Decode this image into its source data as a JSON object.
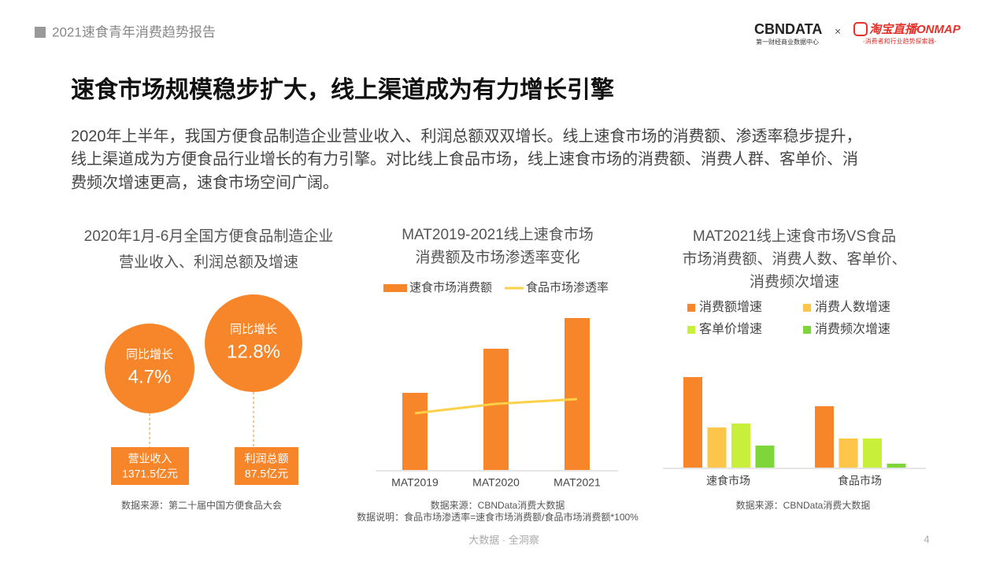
{
  "header": {
    "report_title": "2021速食青年消费趋势报告",
    "logo1": "CBNDATA",
    "logo1_sub": "第一财经商业数据中心",
    "logo_x": "×",
    "logo2": "淘宝直播ONMAP",
    "logo2_sub": "-消费者和行业趋势探索器-"
  },
  "title": "速食市场规模稳步扩大，线上渠道成为有力增长引擎",
  "body_lines": [
    "2020年上半年，我国方便食品制造企业营业收入、利润总额双双增长。线上速食市场的消费额、渗透率稳步提升，",
    "线上渠道成为方便食品行业增长的有力引擎。对比线上食品市场，线上速食市场的消费额、消费人群、客单价、消",
    "费频次增速更高，速食市场空间广阔。"
  ],
  "chart_data": [
    {
      "type": "circle",
      "title_lines": [
        "2020年1月-6月全国方便食品制造企业",
        "营业收入、利润总额及增速"
      ],
      "color": "#f7862b",
      "growth_label": "同比增长",
      "categories": [
        "营业收入",
        "利润总额"
      ],
      "values": [
        4.7,
        12.8
      ],
      "value_labels": [
        "4.7%",
        "12.8%"
      ],
      "amounts": [
        1371.5,
        87.5
      ],
      "amount_labels": [
        "1371.5亿元",
        "87.5亿元"
      ],
      "source_lines": [
        "数据来源：第二十届中国方便食品大会"
      ]
    },
    {
      "type": "bar_line",
      "title_lines": [
        "MAT2019-2021线上速食市场",
        "消费额及市场渗透率变化"
      ],
      "categories": [
        "MAT2019",
        "MAT2020",
        "MAT2021"
      ],
      "ylim": [
        0,
        200
      ],
      "y2lim": [
        0,
        200
      ],
      "series": [
        {
          "name": "速食市场消费额",
          "color": "#f7862b",
          "values": [
            98,
            154,
            193
          ]
        },
        {
          "name": "食品市场渗透率",
          "color": "#fcd048",
          "values": [
            72,
            84,
            90
          ],
          "axis": "y2"
        }
      ],
      "source_lines": [
        "数据来源：CBNData消费大数据",
        "数据说明：食品市场渗透率=速食市场消费额/食品市场消费额*100%"
      ]
    },
    {
      "type": "grouped_bar",
      "title_lines": [
        "MAT2021线上速食市场VS食品",
        "市场消费额、消费人数、客单价、",
        "消费频次增速"
      ],
      "categories": [
        "速食市场",
        "食品市场"
      ],
      "ylim": [
        0,
        130
      ],
      "series": [
        {
          "name": "消费额增速",
          "color": "#f7862b",
          "values": [
            115,
            78
          ]
        },
        {
          "name": "消费人数增速",
          "color": "#fdc64a",
          "values": [
            51,
            37
          ]
        },
        {
          "name": "客单价增速",
          "color": "#c8f03a",
          "values": [
            56,
            37
          ]
        },
        {
          "name": "消费频次增速",
          "color": "#7ed63a",
          "values": [
            28,
            5
          ]
        }
      ],
      "source_lines": [
        "数据来源：CBNData消费大数据"
      ]
    }
  ],
  "footer": {
    "text": "大数据 · 全洞察",
    "page": "4"
  }
}
